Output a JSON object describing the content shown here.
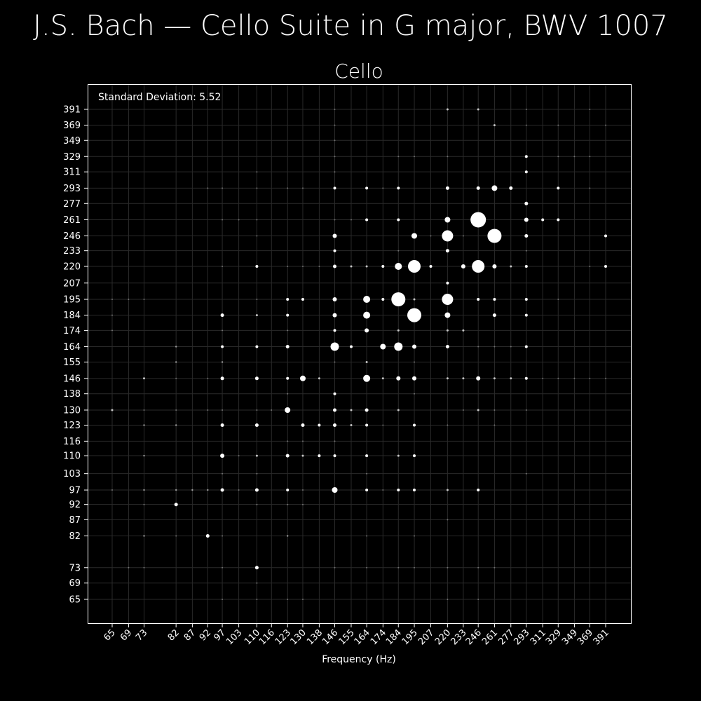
{
  "chart_data": {
    "type": "scatter",
    "title": "J.S. Bach — Cello Suite in G major, BWV 1007",
    "subtitle": "Cello",
    "xlabel": "Frequency (Hz)",
    "ylabel": "",
    "annotation": "Standard Deviation: 5.52",
    "x_scale": "log",
    "y_scale": "log",
    "xlim": [
      58,
      440
    ],
    "ylim": [
      58,
      440
    ],
    "grid": true,
    "x_ticks": [
      65,
      69,
      73,
      82,
      87,
      92,
      97,
      103,
      110,
      116,
      123,
      130,
      138,
      146,
      155,
      164,
      174,
      184,
      195,
      207,
      220,
      233,
      246,
      261,
      277,
      293,
      311,
      329,
      349,
      369,
      391
    ],
    "y_ticks": [
      65,
      69,
      73,
      82,
      87,
      92,
      97,
      103,
      110,
      116,
      123,
      130,
      138,
      146,
      155,
      164,
      174,
      184,
      195,
      207,
      220,
      233,
      246,
      261,
      277,
      293,
      311,
      329,
      349,
      369,
      391
    ],
    "colors": {
      "background": "#000000",
      "points": "#ffffff",
      "grid": "#2a2a2a",
      "frame": "#ffffff"
    },
    "points": [
      [
        246,
        261,
        11
      ],
      [
        261,
        246,
        10
      ],
      [
        195,
        184,
        10
      ],
      [
        184,
        195,
        10
      ],
      [
        195,
        220,
        9
      ],
      [
        246,
        220,
        9
      ],
      [
        220,
        246,
        8
      ],
      [
        220,
        195,
        8
      ],
      [
        146,
        164,
        6
      ],
      [
        184,
        164,
        6
      ],
      [
        164,
        195,
        5
      ],
      [
        164,
        184,
        5
      ],
      [
        164,
        146,
        5
      ],
      [
        184,
        220,
        5
      ],
      [
        195,
        246,
        4
      ],
      [
        220,
        261,
        4
      ],
      [
        261,
        293,
        4
      ],
      [
        220,
        184,
        4
      ],
      [
        130,
        146,
        4
      ],
      [
        123,
        130,
        4
      ],
      [
        146,
        97,
        4
      ],
      [
        174,
        164,
        4
      ],
      [
        164,
        174,
        3
      ],
      [
        293,
        261,
        3
      ],
      [
        195,
        164,
        3
      ],
      [
        146,
        184,
        3
      ],
      [
        146,
        195,
        3
      ],
      [
        184,
        146,
        3
      ],
      [
        195,
        146,
        3
      ],
      [
        246,
        146,
        3
      ],
      [
        233,
        220,
        3
      ],
      [
        261,
        220,
        3
      ],
      [
        146,
        246,
        3
      ],
      [
        97,
        110,
        3
      ],
      [
        110,
        73,
        2.5
      ],
      [
        82,
        92,
        2.5
      ],
      [
        92,
        82,
        2.5
      ],
      [
        97,
        123,
        2.5
      ],
      [
        110,
        123,
        2.5
      ],
      [
        130,
        123,
        2.5
      ],
      [
        146,
        123,
        2.5
      ],
      [
        110,
        146,
        2.5
      ],
      [
        97,
        146,
        2.5
      ],
      [
        146,
        220,
        2.5
      ],
      [
        220,
        293,
        2.5
      ],
      [
        246,
        293,
        2.5
      ],
      [
        277,
        293,
        2.5
      ],
      [
        293,
        277,
        2.5
      ],
      [
        293,
        246,
        2.5
      ],
      [
        220,
        233,
        2.5
      ],
      [
        220,
        164,
        2.5
      ],
      [
        261,
        184,
        2.5
      ],
      [
        97,
        97,
        2.5
      ],
      [
        110,
        97,
        2.5
      ],
      [
        123,
        110,
        2.5
      ],
      [
        97,
        184,
        2.5
      ],
      [
        123,
        164,
        2.5
      ],
      [
        164,
        130,
        2.5
      ],
      [
        146,
        130,
        2.5
      ],
      [
        146,
        138,
        2
      ],
      [
        123,
        195,
        2
      ],
      [
        130,
        195,
        2
      ],
      [
        110,
        220,
        2
      ],
      [
        246,
        195,
        2
      ],
      [
        261,
        195,
        2
      ],
      [
        123,
        146,
        2
      ],
      [
        146,
        110,
        2
      ],
      [
        164,
        110,
        2
      ],
      [
        195,
        110,
        2
      ],
      [
        195,
        123,
        2
      ],
      [
        195,
        97,
        2
      ],
      [
        184,
        97,
        2
      ],
      [
        164,
        97,
        2
      ],
      [
        246,
        97,
        2
      ],
      [
        164,
        123,
        2
      ],
      [
        138,
        123,
        2
      ],
      [
        138,
        110,
        2
      ],
      [
        123,
        97,
        2
      ],
      [
        123,
        184,
        2
      ],
      [
        146,
        233,
        2
      ],
      [
        184,
        261,
        2
      ],
      [
        164,
        261,
        2
      ],
      [
        184,
        293,
        2
      ],
      [
        164,
        293,
        2
      ],
      [
        146,
        293,
        2
      ],
      [
        220,
        207,
        2
      ],
      [
        207,
        220,
        2
      ],
      [
        174,
        195,
        2
      ],
      [
        146,
        174,
        2
      ],
      [
        174,
        220,
        2
      ],
      [
        97,
        164,
        2
      ],
      [
        110,
        164,
        2
      ],
      [
        146,
        164,
        2
      ],
      [
        155,
        164,
        2
      ],
      [
        293,
        220,
        2
      ],
      [
        293,
        195,
        2
      ],
      [
        293,
        184,
        2
      ],
      [
        293,
        164,
        2
      ],
      [
        293,
        146,
        2
      ],
      [
        293,
        329,
        2
      ],
      [
        293,
        311,
        2
      ],
      [
        311,
        261,
        2
      ],
      [
        329,
        261,
        2
      ],
      [
        329,
        293,
        2
      ],
      [
        391,
        246,
        2
      ],
      [
        391,
        220,
        2
      ],
      [
        246,
        391,
        1.5
      ],
      [
        261,
        369,
        1.5
      ],
      [
        220,
        391,
        1.5
      ],
      [
        73,
        146,
        1.5
      ],
      [
        65,
        130,
        1.5
      ],
      [
        110,
        184,
        1.5
      ],
      [
        110,
        110,
        1.5
      ],
      [
        130,
        110,
        1.5
      ],
      [
        261,
        146,
        1.5
      ],
      [
        277,
        220,
        1.5
      ],
      [
        277,
        146,
        1.5
      ],
      [
        246,
        130,
        1.5
      ],
      [
        220,
        146,
        1.5
      ],
      [
        233,
        146,
        1.5
      ],
      [
        195,
        195,
        1.5
      ],
      [
        164,
        220,
        1.5
      ],
      [
        155,
        220,
        1.5
      ],
      [
        184,
        130,
        1.5
      ],
      [
        174,
        146,
        1.5
      ],
      [
        164,
        155,
        1.5
      ],
      [
        184,
        174,
        1.5
      ],
      [
        220,
        174,
        1.5
      ],
      [
        233,
        174,
        1.5
      ],
      [
        184,
        110,
        1.5
      ],
      [
        220,
        97,
        1.5
      ],
      [
        155,
        123,
        1.5
      ],
      [
        155,
        130,
        1.5
      ],
      [
        138,
        146,
        1.5
      ],
      [
        123,
        82,
        1.2
      ],
      [
        73,
        82,
        1.2
      ],
      [
        73,
        123,
        1.2
      ],
      [
        97,
        155,
        1.2
      ],
      [
        82,
        155,
        1.2
      ],
      [
        82,
        164,
        1.2
      ],
      [
        82,
        123,
        1.2
      ],
      [
        82,
        97,
        1.2
      ],
      [
        87,
        97,
        1.2
      ],
      [
        92,
        97,
        1.2
      ],
      [
        73,
        97,
        1.2
      ],
      [
        73,
        110,
        1.2
      ],
      [
        97,
        65,
        1
      ],
      [
        110,
        65,
        1
      ],
      [
        123,
        65,
        1
      ],
      [
        130,
        65,
        1
      ],
      [
        220,
        65,
        1
      ],
      [
        246,
        65,
        1
      ],
      [
        97,
        73,
        1
      ],
      [
        146,
        73,
        1
      ],
      [
        184,
        73,
        1
      ],
      [
        195,
        73,
        1
      ],
      [
        220,
        73,
        1
      ],
      [
        246,
        73,
        1
      ],
      [
        261,
        73,
        1
      ],
      [
        69,
        73,
        1
      ],
      [
        73,
        73,
        1
      ],
      [
        110,
        69,
        1
      ],
      [
        220,
        87,
        1
      ],
      [
        164,
        82,
        1
      ],
      [
        195,
        82,
        1
      ],
      [
        82,
        82,
        1
      ],
      [
        97,
        82,
        1
      ],
      [
        110,
        92,
        1
      ],
      [
        123,
        92,
        1
      ],
      [
        130,
        92,
        1
      ],
      [
        73,
        92,
        1
      ],
      [
        65,
        97,
        1
      ],
      [
        97,
        103,
        1
      ],
      [
        103,
        97,
        1
      ],
      [
        110,
        103,
        1
      ],
      [
        164,
        103,
        1
      ],
      [
        293,
        103,
        1
      ],
      [
        103,
        110,
        1
      ],
      [
        130,
        116,
        1
      ],
      [
        123,
        116,
        1
      ],
      [
        146,
        116,
        1
      ],
      [
        97,
        130,
        1
      ],
      [
        82,
        130,
        1
      ],
      [
        73,
        130,
        1
      ],
      [
        92,
        130,
        1
      ],
      [
        110,
        130,
        1
      ],
      [
        116,
        130,
        1
      ],
      [
        123,
        138,
        1
      ],
      [
        195,
        138,
        1
      ],
      [
        82,
        146,
        1
      ],
      [
        92,
        146,
        1
      ],
      [
        311,
        146,
        1
      ],
      [
        329,
        146,
        1
      ],
      [
        349,
        146,
        1
      ],
      [
        369,
        146,
        1
      ],
      [
        391,
        146,
        1
      ],
      [
        146,
        155,
        1
      ],
      [
        195,
        155,
        1
      ],
      [
        123,
        174,
        1
      ],
      [
        97,
        174,
        1
      ],
      [
        65,
        174,
        1
      ],
      [
        65,
        184,
        1
      ],
      [
        65,
        195,
        1
      ],
      [
        69,
        195,
        1
      ],
      [
        73,
        195,
        1
      ],
      [
        110,
        195,
        1
      ],
      [
        329,
        195,
        1
      ],
      [
        97,
        220,
        1
      ],
      [
        123,
        220,
        1
      ],
      [
        130,
        220,
        1
      ],
      [
        138,
        220,
        1
      ],
      [
        369,
        220,
        1
      ],
      [
        110,
        246,
        1
      ],
      [
        97,
        261,
        1
      ],
      [
        110,
        261,
        1
      ],
      [
        103,
        261,
        1
      ],
      [
        146,
        261,
        1
      ],
      [
        155,
        261,
        1
      ],
      [
        174,
        293,
        1
      ],
      [
        97,
        293,
        1
      ],
      [
        92,
        293,
        1
      ],
      [
        110,
        293,
        1
      ],
      [
        123,
        293,
        1
      ],
      [
        130,
        293,
        1
      ],
      [
        369,
        293,
        1
      ],
      [
        110,
        311,
        1
      ],
      [
        146,
        311,
        1
      ],
      [
        146,
        329,
        1
      ],
      [
        184,
        329,
        1
      ],
      [
        195,
        329,
        1
      ],
      [
        220,
        329,
        1
      ],
      [
        329,
        329,
        1
      ],
      [
        349,
        329,
        1
      ],
      [
        369,
        329,
        1
      ],
      [
        146,
        349,
        1
      ],
      [
        146,
        369,
        1
      ],
      [
        293,
        369,
        1
      ],
      [
        329,
        369,
        1
      ],
      [
        391,
        369,
        1
      ],
      [
        146,
        391,
        1
      ],
      [
        293,
        391,
        1
      ],
      [
        369,
        391,
        1
      ],
      [
        130,
        97,
        1
      ],
      [
        293,
        130,
        1
      ],
      [
        261,
        130,
        1
      ],
      [
        261,
        123,
        1
      ],
      [
        220,
        123,
        1
      ],
      [
        246,
        164,
        1
      ],
      [
        261,
        164,
        1
      ],
      [
        277,
        164,
        1
      ],
      [
        233,
        130,
        1
      ],
      [
        174,
        123,
        1
      ],
      [
        174,
        97,
        1
      ],
      [
        164,
        73,
        1
      ],
      [
        293,
        233,
        1
      ],
      [
        233,
        246,
        1
      ],
      [
        207,
        246,
        1
      ],
      [
        184,
        233,
        1
      ]
    ]
  }
}
